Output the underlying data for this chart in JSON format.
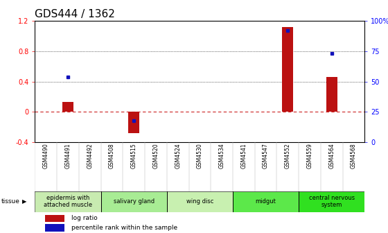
{
  "title": "GDS444 / 1362",
  "samples": [
    "GSM4490",
    "GSM4491",
    "GSM4492",
    "GSM4508",
    "GSM4515",
    "GSM4520",
    "GSM4524",
    "GSM4530",
    "GSM4534",
    "GSM4541",
    "GSM4547",
    "GSM4552",
    "GSM4559",
    "GSM4564",
    "GSM4568"
  ],
  "log_ratio": [
    0.0,
    0.13,
    0.0,
    0.0,
    -0.28,
    0.0,
    0.0,
    0.0,
    0.0,
    0.0,
    0.0,
    1.12,
    0.0,
    0.46,
    0.0
  ],
  "percentile_rank": [
    null,
    54,
    null,
    null,
    18,
    null,
    null,
    null,
    null,
    null,
    null,
    92,
    null,
    73,
    null
  ],
  "tissues": [
    {
      "label": "epidermis with\nattached muscle",
      "start": 0,
      "end": 2,
      "color": "#c8e8b0"
    },
    {
      "label": "salivary gland",
      "start": 3,
      "end": 5,
      "color": "#a0e890"
    },
    {
      "label": "wing disc",
      "start": 6,
      "end": 8,
      "color": "#c0f0a0"
    },
    {
      "label": "midgut",
      "start": 9,
      "end": 11,
      "color": "#60e050"
    },
    {
      "label": "central nervous\nsystem",
      "start": 12,
      "end": 14,
      "color": "#30d820"
    }
  ],
  "ylim": [
    -0.4,
    1.2
  ],
  "yticks_left": [
    -0.4,
    0.0,
    0.4,
    0.8,
    1.2
  ],
  "yticks_right": [
    0,
    25,
    50,
    75,
    100
  ],
  "bar_color": "#bb1111",
  "dot_color": "#1111bb",
  "zero_line_color": "#cc2222",
  "grid_color": "#111111",
  "bg_color": "#ffffff",
  "title_fontsize": 11,
  "tick_fontsize": 7,
  "tissue_fontsize": 6,
  "label_fontsize": 5.5
}
